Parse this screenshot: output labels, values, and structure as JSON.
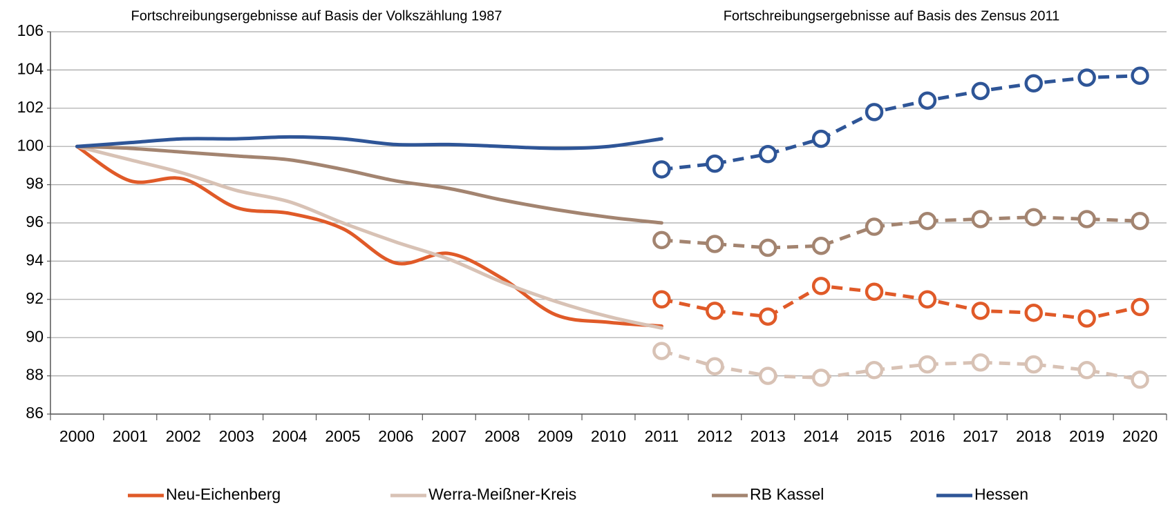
{
  "chart_data": {
    "type": "line",
    "annotations": [
      "Fortschreibungsergebnisse auf Basis der Volkszählung 1987",
      "Fortschreibungsergebnisse auf Basis des Zensus 2011"
    ],
    "categories": [
      "2000",
      "2001",
      "2002",
      "2003",
      "2004",
      "2005",
      "2006",
      "2007",
      "2008",
      "2009",
      "2010",
      "2011",
      "2012",
      "2013",
      "2014",
      "2015",
      "2016",
      "2017",
      "2018",
      "2019",
      "2020"
    ],
    "series": [
      {
        "name": "Neu-Eichenberg",
        "color": "#e05a28",
        "values": [
          100,
          98.2,
          98.3,
          96.8,
          96.5,
          95.7,
          93.9,
          94.4,
          93.1,
          91.2,
          90.8,
          90.6,
          null,
          null,
          null,
          null,
          null,
          null,
          null,
          null,
          null
        ],
        "values_census": [
          null,
          null,
          null,
          null,
          null,
          null,
          null,
          null,
          null,
          null,
          null,
          92.0,
          91.4,
          91.1,
          92.7,
          92.4,
          92.0,
          91.4,
          91.3,
          91.0,
          91.6
        ]
      },
      {
        "name": "Werra-Meißner-Kreis",
        "color": "#d8c2b5",
        "values": [
          100,
          99.3,
          98.6,
          97.7,
          97.1,
          96.0,
          95.0,
          94.1,
          92.9,
          91.9,
          91.1,
          90.5,
          null,
          null,
          null,
          null,
          null,
          null,
          null,
          null,
          null
        ],
        "values_census": [
          null,
          null,
          null,
          null,
          null,
          null,
          null,
          null,
          null,
          null,
          null,
          89.3,
          88.5,
          88.0,
          87.9,
          88.3,
          88.6,
          88.7,
          88.6,
          88.3,
          87.8
        ]
      },
      {
        "name": "RB Kassel",
        "color": "#a38470",
        "values": [
          100,
          99.9,
          99.7,
          99.5,
          99.3,
          98.8,
          98.2,
          97.8,
          97.2,
          96.7,
          96.3,
          96.0,
          null,
          null,
          null,
          null,
          null,
          null,
          null,
          null,
          null
        ],
        "values_census": [
          null,
          null,
          null,
          null,
          null,
          null,
          null,
          null,
          null,
          null,
          null,
          95.1,
          94.9,
          94.7,
          94.8,
          95.8,
          96.1,
          96.2,
          96.3,
          96.2,
          96.1
        ]
      },
      {
        "name": "Hessen",
        "color": "#2e5597",
        "values": [
          100,
          100.2,
          100.4,
          100.4,
          100.5,
          100.4,
          100.1,
          100.1,
          100.0,
          99.9,
          100.0,
          100.4,
          null,
          null,
          null,
          null,
          null,
          null,
          null,
          null,
          null
        ],
        "values_census": [
          null,
          null,
          null,
          null,
          null,
          null,
          null,
          null,
          null,
          null,
          null,
          98.8,
          99.1,
          99.6,
          100.4,
          101.8,
          102.4,
          102.9,
          103.3,
          103.6,
          103.7
        ]
      }
    ],
    "ylim": [
      86,
      106
    ],
    "yticks": [
      86,
      88,
      90,
      92,
      94,
      96,
      98,
      100,
      102,
      104,
      106
    ],
    "grid": true
  }
}
